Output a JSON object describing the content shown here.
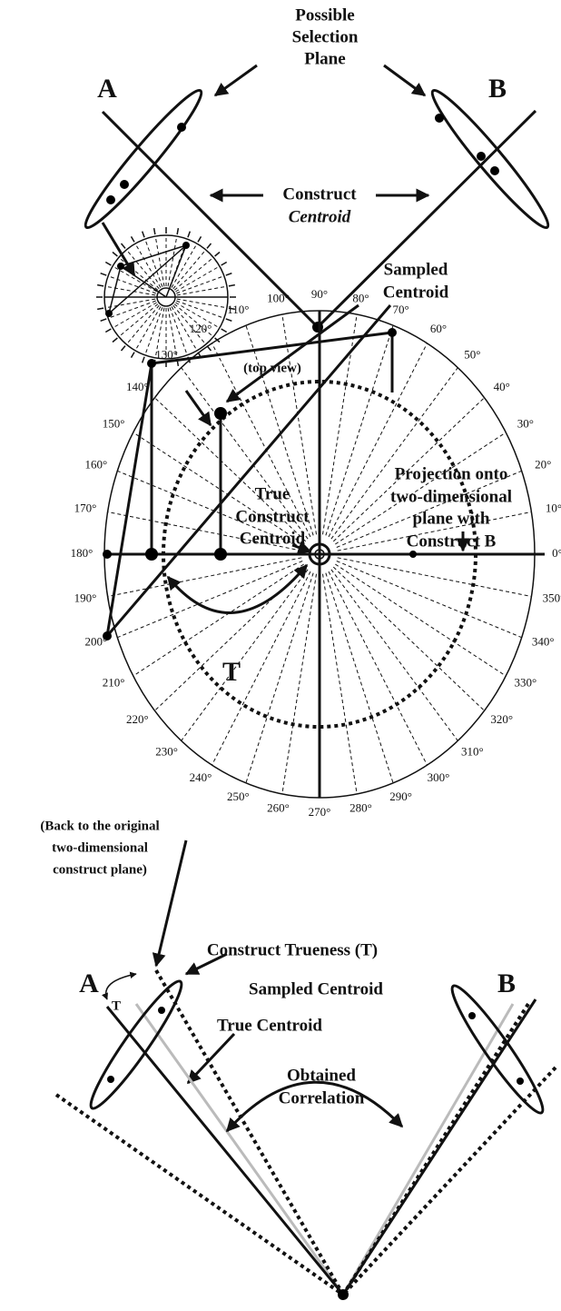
{
  "top": {
    "selection_plane": [
      "Possible",
      "Selection",
      "Plane"
    ],
    "label_a": "A",
    "label_b": "B",
    "construct_centroid": [
      "Construct",
      "Centroid"
    ]
  },
  "top_view": "(top view)",
  "dial": {
    "degree_labels": [
      "0°",
      "10°",
      "20°",
      "30°",
      "40°",
      "50°",
      "60°",
      "70°",
      "80°",
      "90°",
      "100°",
      "110°",
      "120°",
      "130°",
      "140°",
      "150°",
      "160°",
      "170°",
      "180°",
      "190°",
      "200°",
      "210°",
      "220°",
      "230°",
      "240°",
      "250°",
      "260°",
      "270°",
      "280°",
      "290°",
      "300°",
      "310°",
      "320°",
      "330°",
      "340°",
      "350°"
    ],
    "sampled_centroid": [
      "Sampled",
      "Centroid"
    ],
    "projection": [
      "Projection onto",
      "two-dimensional",
      "plane with",
      "Construct B"
    ],
    "true_centroid": [
      "True",
      "Construct",
      "Centroid"
    ],
    "t": "T"
  },
  "bottom": {
    "back_note": [
      "(Back to the original",
      "two-dimensional",
      "construct plane)"
    ],
    "label_a": "A",
    "label_b": "B",
    "t": "T",
    "trueness": "Construct Trueness (T)",
    "sampled": "Sampled Centroid",
    "true_centroid": "True Centroid",
    "correlation": [
      "Obtained",
      "Correlation"
    ]
  }
}
